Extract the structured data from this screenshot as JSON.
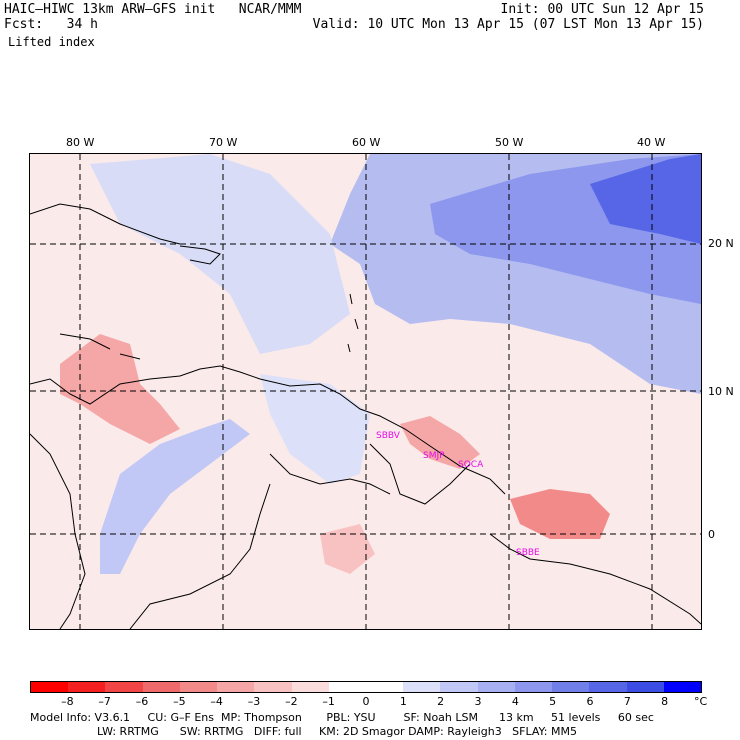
{
  "header": {
    "model_line": "HAIC–HIWC 13km ARW–GFS init   NCAR/MMM",
    "forecast_line": "Fcst:   34 h",
    "field_name": "Lifted index",
    "init_line": "Init: 00 UTC Sun 12 Apr 15",
    "valid_line": "Valid: 10 UTC Mon 13 Apr 15 (07 LST Mon 13 Apr 15)"
  },
  "map": {
    "lon_labels": [
      "80 W",
      "70 W",
      "60 W",
      "50 W",
      "40 W"
    ],
    "lat_labels": [
      "20 N",
      "10 N",
      "0"
    ],
    "stations": [
      "SBBV",
      "SMJP",
      "SOCA",
      "SBBE"
    ],
    "colors": {
      "background": "#fbeaea",
      "negative_light": "#f7c6c6",
      "negative_mid": "#f0a0a0",
      "positive_light": "#d8dcf6",
      "positive_mid": "#b4bcf0",
      "positive_strong": "#6f80ea",
      "positive_max": "#3b4fe0",
      "coastline": "#000000",
      "station_label": "#e60ce6"
    }
  },
  "colorbar": {
    "colors": [
      "#ff0000",
      "#f52020",
      "#f24545",
      "#ef6a6a",
      "#f28a8a",
      "#f5a6a6",
      "#f8c2c2",
      "#fbdcdc",
      "#ffffff",
      "#ffffff",
      "#dde0f9",
      "#c2c8f5",
      "#a7b0f1",
      "#8c97ed",
      "#717fe9",
      "#5666e6",
      "#3b4de2",
      "#0000ff"
    ],
    "labels": [
      "–8",
      "–7",
      "–6",
      "–5",
      "–4",
      "–3",
      "–2",
      "–1",
      "0",
      "1",
      "2",
      "3",
      "4",
      "5",
      "6",
      "7",
      "8"
    ],
    "unit": "°C"
  },
  "info": {
    "line1": "Model Info: V3.6.1     CU: G–F Ens  MP: Thompson       PBL: YSU        SF: Noah LSM      13 km     51 levels     60 sec",
    "line2": "LW: RRTMG      SW: RRTMG   DIFF: full     KM: 2D Smagor DAMP: Rayleigh3   SFLAY: MM5"
  }
}
